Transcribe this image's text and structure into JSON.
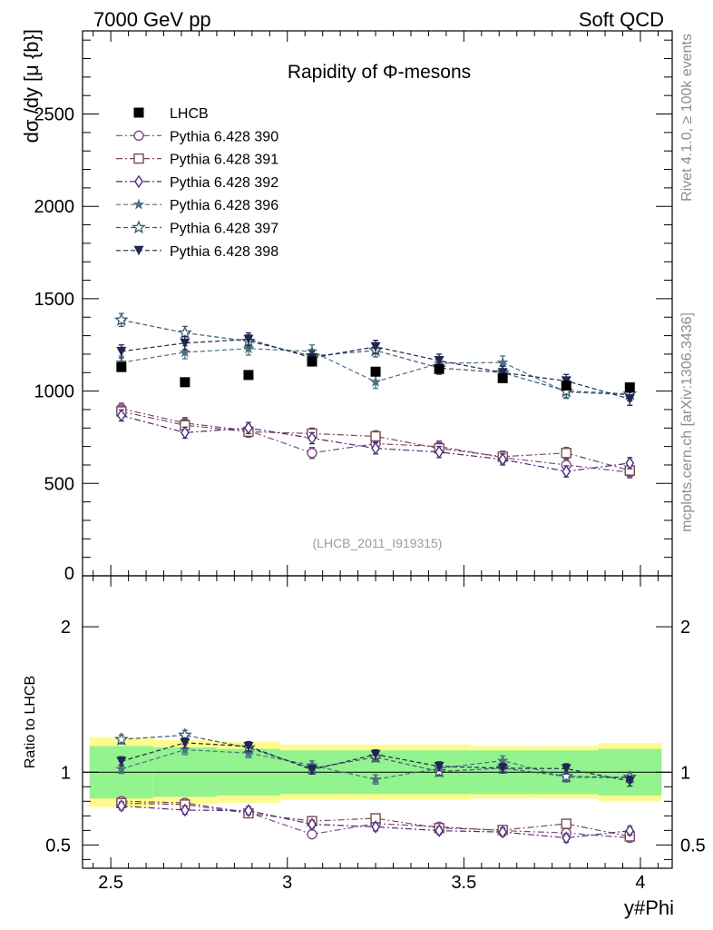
{
  "header": {
    "left": "7000 GeV pp",
    "right": "Soft QCD"
  },
  "side_labels": {
    "rivet": "Rivet 4.1.0, ≥ 100k events",
    "mcplots": "mcplots.cern.ch [arXiv:1306.3436]"
  },
  "chart_data": {
    "type": "scatter",
    "title": "Rapidity of Φ-mesons",
    "xlabel": "y#Phi",
    "ylabel": "dσ /dy [μ {b}]",
    "ratio_ylabel": "Ratio to LHCB",
    "watermark": "(LHCB_2011_I919315)",
    "xlim": [
      2.42,
      4.09
    ],
    "ylim": [
      0,
      2950
    ],
    "ratio_ylim": [
      0.34,
      2.35
    ],
    "xticks": [
      "2.5",
      "3",
      "3.5",
      "4"
    ],
    "xtick_values": [
      2.5,
      3,
      3.5,
      4
    ],
    "yticks": [
      "500",
      "1000",
      "1500",
      "2000",
      "2500"
    ],
    "ytick_values": [
      500,
      1000,
      1500,
      2000,
      2500
    ],
    "ytick_zero": "0",
    "ratio_yticks": [
      "0.5",
      "1",
      "2"
    ],
    "ratio_ytick_values": [
      0.5,
      1,
      2
    ],
    "x": [
      2.53,
      2.71,
      2.89,
      3.07,
      3.25,
      3.43,
      3.61,
      3.79,
      3.97
    ],
    "x_edges": [
      2.44,
      2.62,
      2.8,
      2.98,
      3.16,
      3.34,
      3.52,
      3.7,
      3.88,
      4.06
    ],
    "data": {
      "name": "LHCB",
      "values": [
        1130,
        1048,
        1087,
        1160,
        1105,
        1120,
        1070,
        1030,
        1020
      ],
      "band_inner": [
        0.18,
        0.17,
        0.16,
        0.15,
        0.15,
        0.15,
        0.15,
        0.15,
        0.16
      ],
      "band_outer": [
        0.24,
        0.22,
        0.21,
        0.19,
        0.19,
        0.19,
        0.18,
        0.18,
        0.2
      ]
    },
    "series": [
      {
        "name": "Pythia 6.428 390",
        "color": "#7b4a82",
        "marker": "circle-open",
        "dash": "7,3,2,3",
        "values": [
          905,
          827,
          786,
          665,
          715,
          700,
          640,
          600,
          560
        ],
        "err": 30
      },
      {
        "name": "Pythia 6.428 391",
        "color": "#7a4a56",
        "marker": "square-open",
        "dash": "7,3,2,3",
        "values": [
          890,
          815,
          780,
          770,
          755,
          690,
          645,
          665,
          570
        ],
        "err": 30
      },
      {
        "name": "Pythia 6.428 392",
        "color": "#4b2b7a",
        "marker": "diamond-open",
        "dash": "7,3,2,3",
        "values": [
          868,
          775,
          800,
          745,
          690,
          670,
          630,
          565,
          610
        ],
        "err": 30
      },
      {
        "name": "Pythia 6.428 396",
        "color": "#4b7282",
        "marker": "star-filled",
        "dash": "5,3",
        "values": [
          1155,
          1210,
          1230,
          1215,
          1050,
          1150,
          1155,
          995,
          980
        ],
        "err": 35
      },
      {
        "name": "Pythia 6.428 397",
        "color": "#3b5b6e",
        "marker": "star-open",
        "dash": "5,3",
        "values": [
          1385,
          1315,
          1270,
          1190,
          1220,
          1125,
          1100,
          1000,
          985
        ],
        "err": 35
      },
      {
        "name": "Pythia 6.428 398",
        "color": "#1f2650",
        "marker": "triangle-down-filled",
        "dash": "5,3",
        "values": [
          1215,
          1260,
          1280,
          1180,
          1240,
          1165,
          1100,
          1055,
          958
        ],
        "err": 35
      }
    ]
  }
}
